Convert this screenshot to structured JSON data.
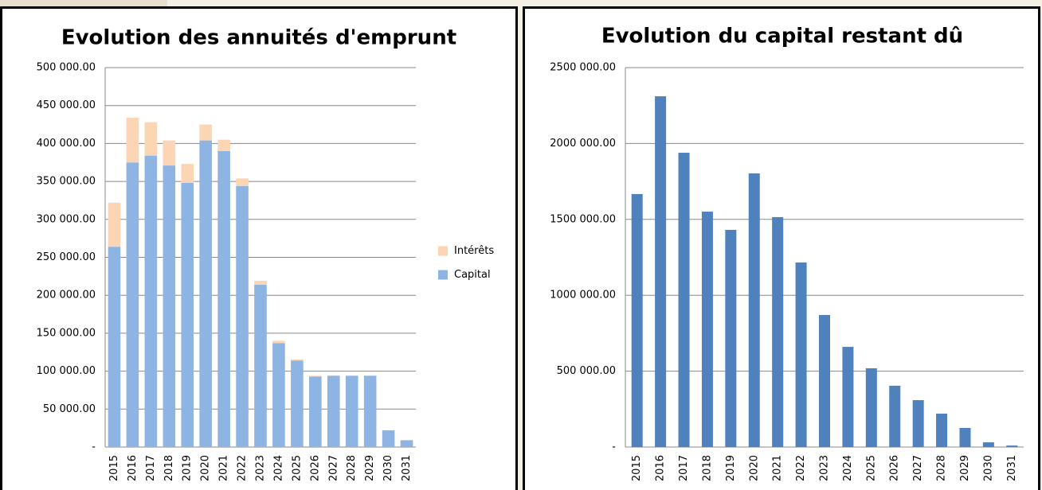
{
  "chart_data": [
    {
      "type": "bar",
      "stacked": true,
      "title": "Evolution des annuités d'emprunt",
      "categories": [
        "2015",
        "2016",
        "2017",
        "2018",
        "2019",
        "2020",
        "2021",
        "2022",
        "2023",
        "2024",
        "2025",
        "2026",
        "2027",
        "2028",
        "2029",
        "2030",
        "2031"
      ],
      "series": [
        {
          "name": "Capital",
          "color": "#8eb4e3",
          "values": [
            264000,
            375000,
            384000,
            371000,
            348000,
            404000,
            390000,
            344000,
            214000,
            137000,
            114000,
            93000,
            94000,
            94000,
            94000,
            22000,
            9000
          ]
        },
        {
          "name": "Intérêts",
          "color": "#fcd5b5",
          "values": [
            58000,
            59000,
            44000,
            33000,
            25000,
            21000,
            15000,
            10000,
            5000,
            3000,
            1500,
            1000,
            500,
            0,
            0,
            0,
            0
          ]
        }
      ],
      "ylim": [
        0,
        500000
      ],
      "yticks": [
        {
          "value": 0,
          "label": "-"
        },
        {
          "value": 50000,
          "label": "50 000.00"
        },
        {
          "value": 100000,
          "label": "100 000.00"
        },
        {
          "value": 150000,
          "label": "150 000.00"
        },
        {
          "value": 200000,
          "label": "200 000.00"
        },
        {
          "value": 250000,
          "label": "250 000.00"
        },
        {
          "value": 300000,
          "label": "300 000.00"
        },
        {
          "value": 350000,
          "label": "350 000.00"
        },
        {
          "value": 400000,
          "label": "400 000.00"
        },
        {
          "value": 450000,
          "label": "450 000.00"
        },
        {
          "value": 500000,
          "label": "500 000.00"
        }
      ],
      "grid": true,
      "legend": "right"
    },
    {
      "type": "bar",
      "title": "Evolution du capital restant dû",
      "categories": [
        "2015",
        "2016",
        "2017",
        "2018",
        "2019",
        "2020",
        "2021",
        "2022",
        "2023",
        "2024",
        "2025",
        "2026",
        "2027",
        "2028",
        "2029",
        "2030",
        "2031"
      ],
      "values": [
        1667000,
        2311000,
        1939000,
        1551000,
        1431000,
        1803000,
        1515000,
        1216000,
        870000,
        660000,
        519000,
        404000,
        309000,
        220000,
        126000,
        31000,
        10000
      ],
      "color": "#4f81bd",
      "ylim": [
        0,
        2500000
      ],
      "yticks": [
        {
          "value": 0,
          "label": "-"
        },
        {
          "value": 500000,
          "label": "500 000.00"
        },
        {
          "value": 1000000,
          "label": "1000 000.00"
        },
        {
          "value": 1500000,
          "label": "1500 000.00"
        },
        {
          "value": 2000000,
          "label": "2000 000.00"
        },
        {
          "value": 2500000,
          "label": "2500 000.00"
        }
      ],
      "grid": true
    }
  ]
}
